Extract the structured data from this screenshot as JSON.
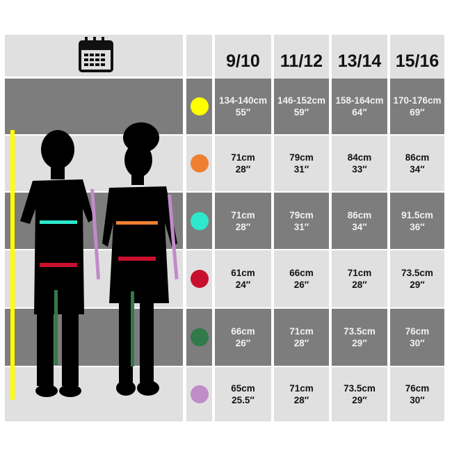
{
  "header": {
    "icon": "calendar-icon",
    "sizes": [
      "9/10",
      "11/12",
      "13/14",
      "15/16"
    ]
  },
  "rows": [
    {
      "color": "#ffff00",
      "values": [
        [
          "134-140cm",
          "55″"
        ],
        [
          "146-152cm",
          "59″"
        ],
        [
          "158-164cm",
          "64″"
        ],
        [
          "170-176cm",
          "69″"
        ]
      ]
    },
    {
      "color": "#f07f32",
      "values": [
        [
          "71cm",
          "28″"
        ],
        [
          "79cm",
          "31″"
        ],
        [
          "84cm",
          "33″"
        ],
        [
          "86cm",
          "34″"
        ]
      ]
    },
    {
      "color": "#2de8cc",
      "values": [
        [
          "71cm",
          "28″"
        ],
        [
          "79cm",
          "31″"
        ],
        [
          "86cm",
          "34″"
        ],
        [
          "91.5cm",
          "36″"
        ]
      ]
    },
    {
      "color": "#c8102e",
      "values": [
        [
          "61cm",
          "24″"
        ],
        [
          "66cm",
          "26″"
        ],
        [
          "71cm",
          "28″"
        ],
        [
          "73.5cm",
          "29″"
        ]
      ]
    },
    {
      "color": "#327a4a",
      "values": [
        [
          "66cm",
          "26″"
        ],
        [
          "71cm",
          "28″"
        ],
        [
          "73.5cm",
          "29″"
        ],
        [
          "76cm",
          "30″"
        ]
      ]
    },
    {
      "color": "#c08cc8",
      "values": [
        [
          "65cm",
          "25.5″"
        ],
        [
          "71cm",
          "28″"
        ],
        [
          "73.5cm",
          "29″"
        ],
        [
          "76cm",
          "30″"
        ]
      ]
    }
  ]
}
